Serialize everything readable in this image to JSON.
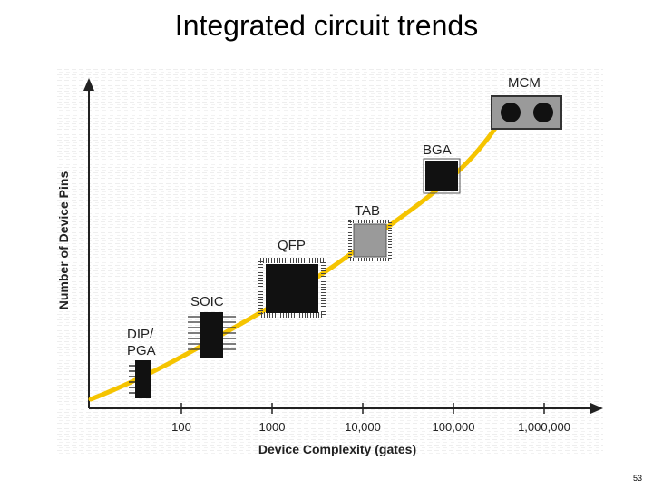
{
  "slide": {
    "title": "Integrated circuit trends",
    "page_number": "53"
  },
  "diagram": {
    "y_axis_label": "Number of Device Pins",
    "x_axis_label": "Device Complexity (gates)",
    "x_ticks": [
      "100",
      "1000",
      "10,000",
      "100,000",
      "1,000,000"
    ],
    "packages": {
      "dip_pga": {
        "label_line1": "DIP/",
        "label_line2": "PGA"
      },
      "soic": {
        "label": "SOIC"
      },
      "qfp": {
        "label": "QFP"
      },
      "tab": {
        "label": "TAB"
      },
      "bga": {
        "label": "BGA"
      },
      "mcm": {
        "label": "MCM"
      }
    },
    "colors": {
      "trend_curve": "#f5c400",
      "axis": "#222222",
      "package_dark": "#111111",
      "package_gray": "#9a9a9a",
      "background_grid": "#f0f0f0"
    }
  }
}
